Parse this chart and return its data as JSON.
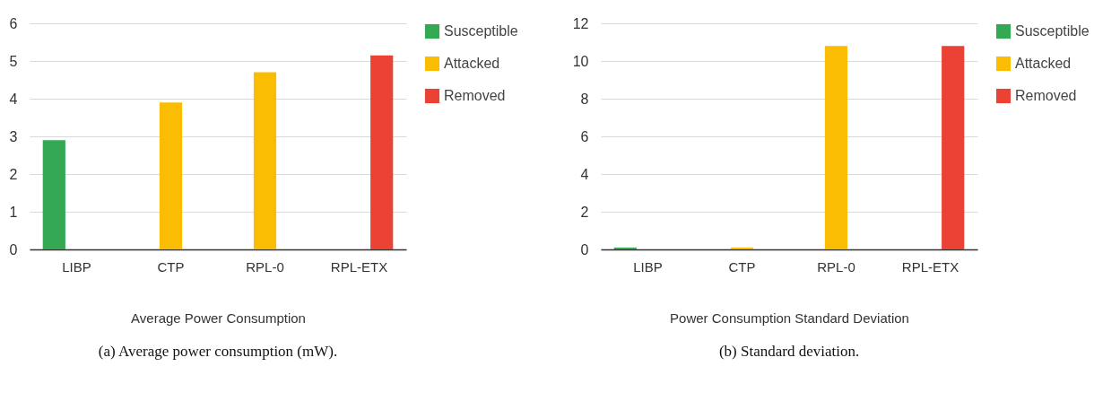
{
  "chart_data": [
    {
      "type": "bar",
      "categories": [
        "LIBP",
        "CTP",
        "RPL-0",
        "RPL-ETX"
      ],
      "xlabel": "Average Power Consumption",
      "ylim": [
        0,
        6
      ],
      "yticks": [
        0,
        1,
        2,
        3,
        4,
        5,
        6
      ],
      "grid": "y",
      "legend": "top right",
      "annotations": [
        "(a) Average power consumption (mW)."
      ],
      "series": [
        {
          "name": "Susceptible",
          "color": "#34a853",
          "values": [
            2.9,
            0,
            0,
            0
          ]
        },
        {
          "name": "Attacked",
          "color": "#fbbc04",
          "values": [
            0,
            3.9,
            4.7,
            0
          ]
        },
        {
          "name": "Removed",
          "color": "#ea4335",
          "values": [
            0,
            0,
            0,
            5.15
          ]
        }
      ]
    },
    {
      "type": "bar",
      "categories": [
        "LIBP",
        "CTP",
        "RPL-0",
        "RPL-ETX"
      ],
      "xlabel": "Power Consumption Standard Deviation",
      "ylim": [
        0,
        12
      ],
      "yticks": [
        0,
        2,
        4,
        6,
        8,
        10,
        12
      ],
      "grid": "y",
      "legend": "top right",
      "annotations": [
        "(b) Standard deviation."
      ],
      "series": [
        {
          "name": "Susceptible",
          "color": "#34a853",
          "values": [
            0.1,
            0,
            0,
            0
          ]
        },
        {
          "name": "Attacked",
          "color": "#fbbc04",
          "values": [
            0,
            0.1,
            10.8,
            0
          ]
        },
        {
          "name": "Removed",
          "color": "#ea4335",
          "values": [
            0,
            0,
            0,
            10.8
          ]
        }
      ]
    }
  ]
}
